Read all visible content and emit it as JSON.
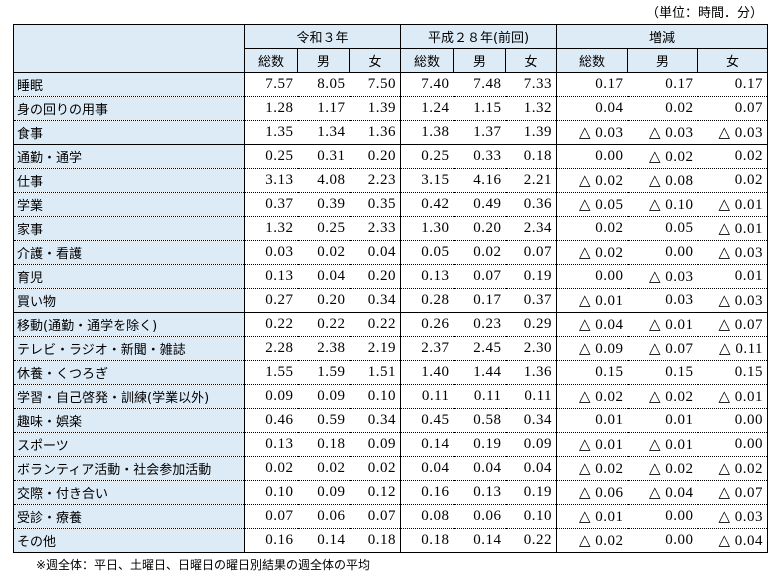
{
  "unit_label": "（単位：時間．分）",
  "header": {
    "groups": [
      "令和３年",
      "平成２８年(前回)",
      "増減"
    ],
    "sub": [
      "総数",
      "男",
      "女",
      "総数",
      "男",
      "女",
      "総数",
      "男",
      "女"
    ]
  },
  "rows": [
    {
      "label": "睡眠",
      "values": [
        "7.57",
        "8.05",
        "7.50",
        "7.40",
        "7.48",
        "7.33",
        "0.17",
        "0.17",
        "0.17"
      ]
    },
    {
      "label": "身の回りの用事",
      "values": [
        "1.28",
        "1.17",
        "1.39",
        "1.24",
        "1.15",
        "1.32",
        "0.04",
        "0.02",
        "0.07"
      ]
    },
    {
      "label": "食事",
      "values": [
        "1.35",
        "1.34",
        "1.36",
        "1.38",
        "1.37",
        "1.39",
        "△ 0.03",
        "△ 0.03",
        "△ 0.03"
      ]
    },
    {
      "label": "通勤・通学",
      "values": [
        "0.25",
        "0.31",
        "0.20",
        "0.25",
        "0.33",
        "0.18",
        "0.00",
        "△ 0.02",
        "0.02"
      ]
    },
    {
      "label": "仕事",
      "values": [
        "3.13",
        "4.08",
        "2.23",
        "3.15",
        "4.16",
        "2.21",
        "△ 0.02",
        "△ 0.08",
        "0.02"
      ]
    },
    {
      "label": "学業",
      "values": [
        "0.37",
        "0.39",
        "0.35",
        "0.42",
        "0.49",
        "0.36",
        "△ 0.05",
        "△ 0.10",
        "△ 0.01"
      ]
    },
    {
      "label": "家事",
      "values": [
        "1.32",
        "0.25",
        "2.33",
        "1.30",
        "0.20",
        "2.34",
        "0.02",
        "0.05",
        "△ 0.01"
      ]
    },
    {
      "label": "介護・看護",
      "values": [
        "0.03",
        "0.02",
        "0.04",
        "0.05",
        "0.02",
        "0.07",
        "△ 0.02",
        "0.00",
        "△ 0.03"
      ]
    },
    {
      "label": "育児",
      "values": [
        "0.13",
        "0.04",
        "0.20",
        "0.13",
        "0.07",
        "0.19",
        "0.00",
        "△ 0.03",
        "0.01"
      ]
    },
    {
      "label": "買い物",
      "values": [
        "0.27",
        "0.20",
        "0.34",
        "0.28",
        "0.17",
        "0.37",
        "△ 0.01",
        "0.03",
        "△ 0.03"
      ]
    },
    {
      "label": "移動(通勤・通学を除く)",
      "values": [
        "0.22",
        "0.22",
        "0.22",
        "0.26",
        "0.23",
        "0.29",
        "△ 0.04",
        "△ 0.01",
        "△ 0.07"
      ]
    },
    {
      "label": "テレビ・ラジオ・新聞・雑誌",
      "values": [
        "2.28",
        "2.38",
        "2.19",
        "2.37",
        "2.45",
        "2.30",
        "△ 0.09",
        "△ 0.07",
        "△ 0.11"
      ]
    },
    {
      "label": "休養・くつろぎ",
      "values": [
        "1.55",
        "1.59",
        "1.51",
        "1.40",
        "1.44",
        "1.36",
        "0.15",
        "0.15",
        "0.15"
      ]
    },
    {
      "label": "学習・自己啓発・訓練(学業以外)",
      "values": [
        "0.09",
        "0.09",
        "0.10",
        "0.11",
        "0.11",
        "0.11",
        "△ 0.02",
        "△ 0.02",
        "△ 0.01"
      ]
    },
    {
      "label": "趣味・娯楽",
      "values": [
        "0.46",
        "0.59",
        "0.34",
        "0.45",
        "0.58",
        "0.34",
        "0.01",
        "0.01",
        "0.00"
      ]
    },
    {
      "label": "スポーツ",
      "values": [
        "0.13",
        "0.18",
        "0.09",
        "0.14",
        "0.19",
        "0.09",
        "△ 0.01",
        "△ 0.01",
        "0.00"
      ]
    },
    {
      "label": "ボランティア活動・社会参加活動",
      "values": [
        "0.02",
        "0.02",
        "0.02",
        "0.04",
        "0.04",
        "0.04",
        "△ 0.02",
        "△ 0.02",
        "△ 0.02"
      ]
    },
    {
      "label": "交際・付き合い",
      "values": [
        "0.10",
        "0.09",
        "0.12",
        "0.16",
        "0.13",
        "0.19",
        "△ 0.06",
        "△ 0.04",
        "△ 0.07"
      ]
    },
    {
      "label": "受診・療養",
      "values": [
        "0.07",
        "0.06",
        "0.07",
        "0.08",
        "0.06",
        "0.10",
        "△ 0.01",
        "0.00",
        "△ 0.03"
      ]
    },
    {
      "label": "その他",
      "values": [
        "0.16",
        "0.14",
        "0.18",
        "0.18",
        "0.14",
        "0.22",
        "△ 0.02",
        "0.00",
        "△ 0.04"
      ]
    }
  ],
  "note": "※週全体：平日、土曜日、日曜日の曜日別結果の週全体の平均"
}
